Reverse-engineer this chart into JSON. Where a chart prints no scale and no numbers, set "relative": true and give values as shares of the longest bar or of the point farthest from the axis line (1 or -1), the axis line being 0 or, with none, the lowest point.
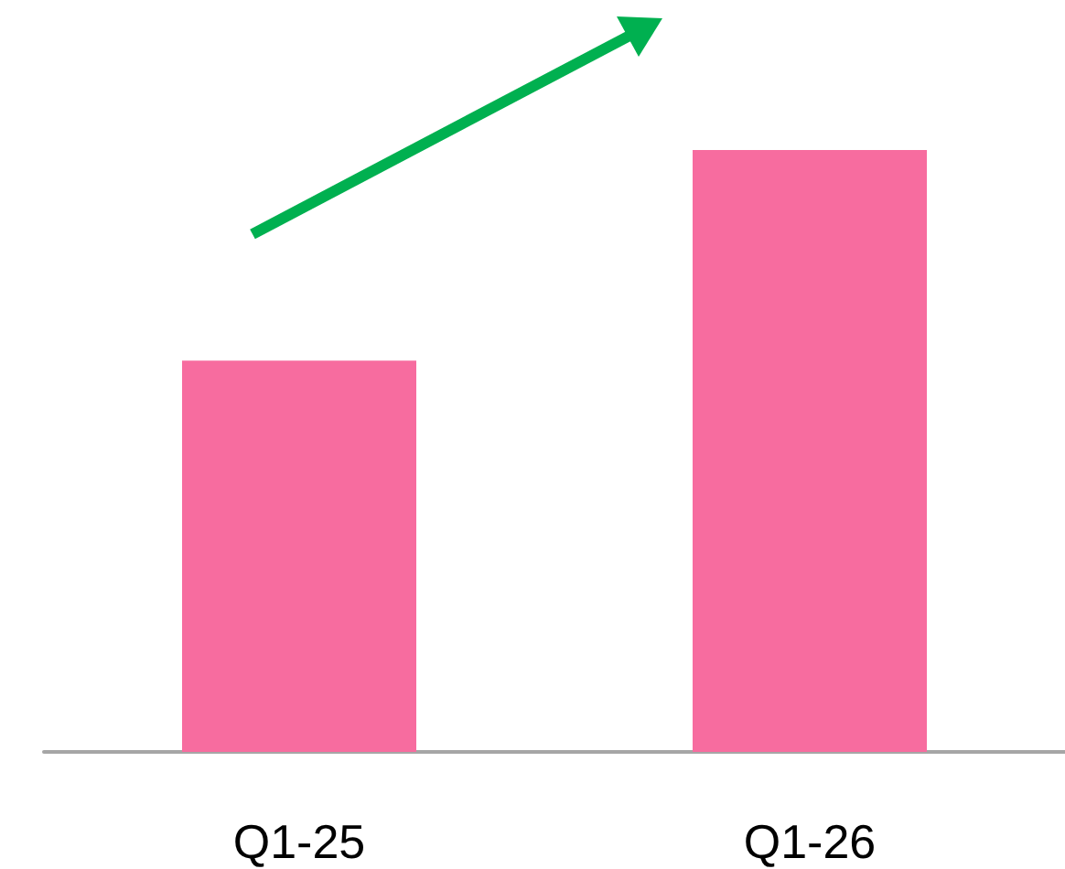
{
  "chart_data": {
    "type": "bar",
    "categories": [
      "Q1-25",
      "Q1-26"
    ],
    "values": [
      0.65,
      1
    ],
    "color": "#f76c9f",
    "relative": true
  }
}
